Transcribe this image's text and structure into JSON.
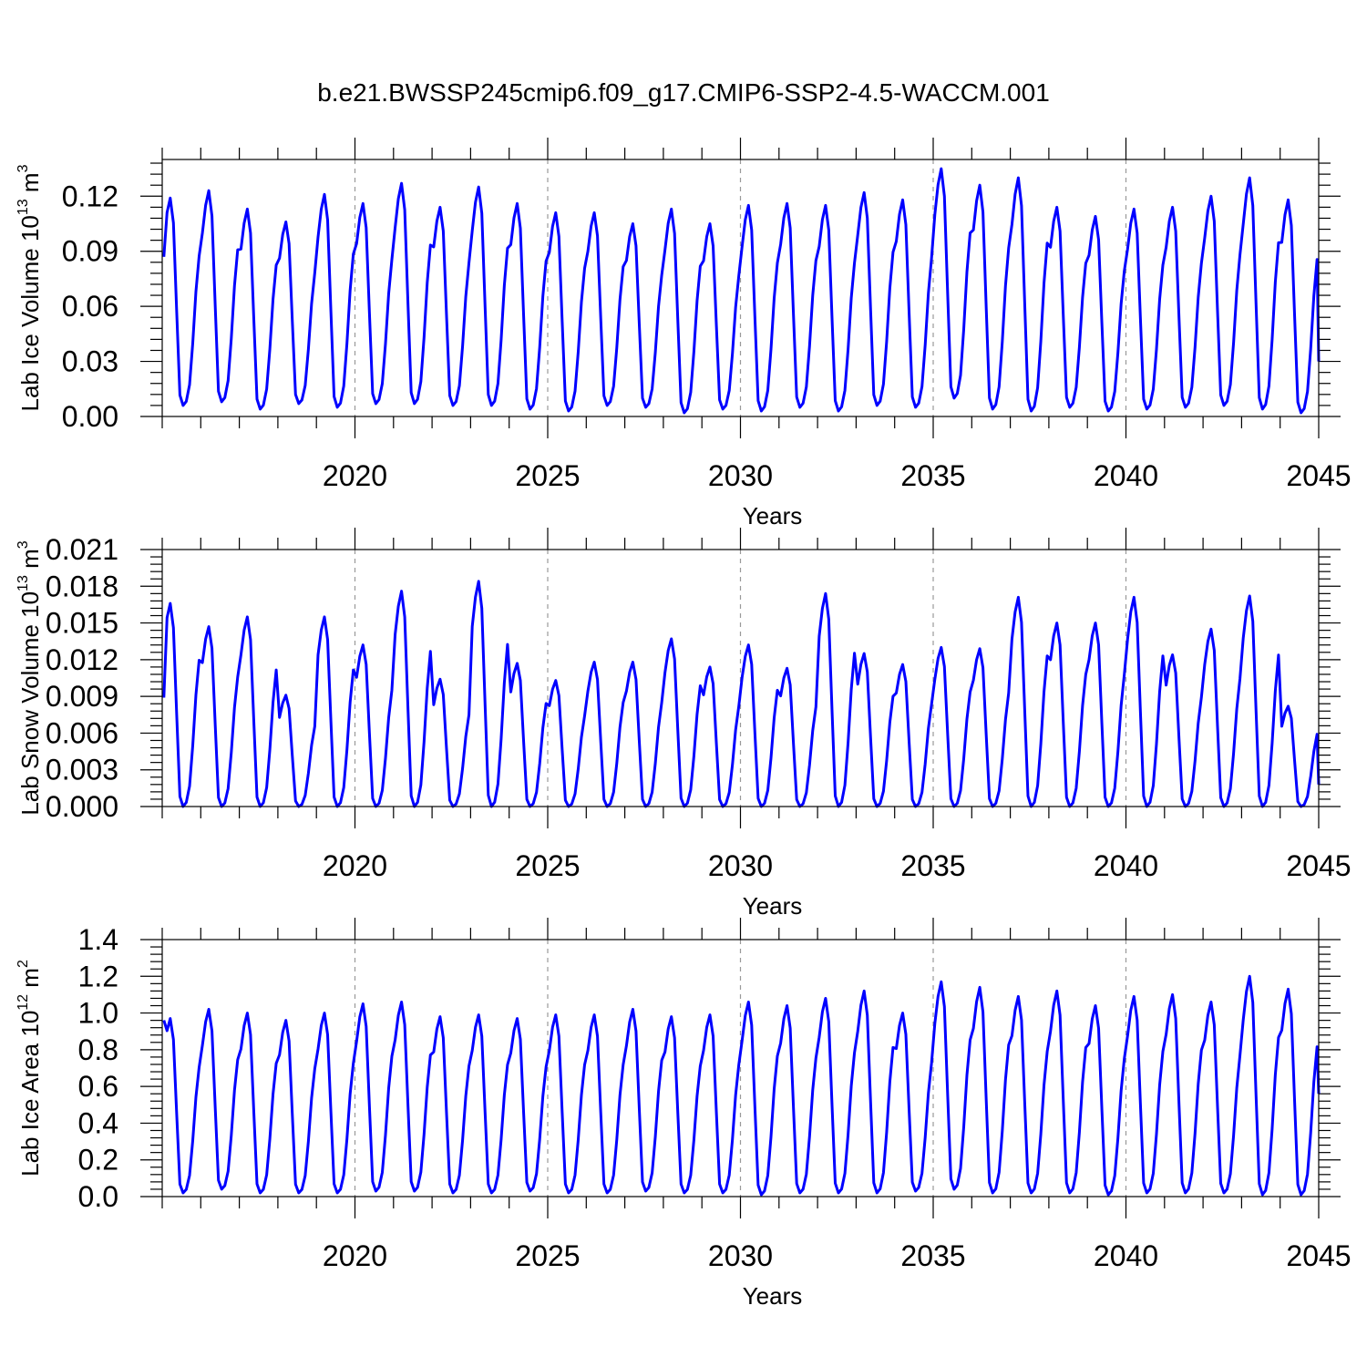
{
  "figure": {
    "title": "b.e21.BWSSP245cmip6.f09_g17.CMIP6-SSP2-4.5-WACCM.001",
    "line_color": "#0000ff"
  },
  "chart_data": [
    {
      "type": "line",
      "ylabel": "Lab Ice Volume 10",
      "ylabel_exp": "13",
      "ylabel_unit": " m",
      "ylabel_unit_exp": "3",
      "xlabel": "Years",
      "xlim": [
        2015,
        2045
      ],
      "ylim": [
        0,
        0.14
      ],
      "yticks": [
        0,
        0.03,
        0.06,
        0.09,
        0.12
      ],
      "ytick_labels": [
        "0.00",
        "0.03",
        "0.06",
        "0.09",
        "0.12"
      ],
      "xticks": [
        2020,
        2025,
        2030,
        2035,
        2040,
        2045
      ],
      "xtick_labels": [
        "2020",
        "2025",
        "2030",
        "2035",
        "2040",
        "2045"
      ],
      "grid_x": [
        2020,
        2025,
        2030,
        2035,
        2040
      ],
      "start": 0.087,
      "end": 0.03,
      "peaks": [
        0.119,
        0.123,
        0.113,
        0.106,
        0.121,
        0.116,
        0.127,
        0.114,
        0.125,
        0.116,
        0.111,
        0.111,
        0.105,
        0.113,
        0.105,
        0.115,
        0.116,
        0.115,
        0.122,
        0.118,
        0.135,
        0.126,
        0.13,
        0.114,
        0.109,
        0.113,
        0.114,
        0.12,
        0.13,
        0.118
      ],
      "troughs": [
        0.006,
        0.008,
        0.004,
        0.007,
        0.005,
        0.007,
        0.007,
        0.006,
        0.006,
        0.004,
        0.003,
        0.006,
        0.005,
        0.002,
        0.004,
        0.003,
        0.005,
        0.003,
        0.006,
        0.005,
        0.01,
        0.004,
        0.003,
        0.005,
        0.003,
        0.004,
        0.005,
        0.006,
        0.004,
        0.002
      ]
    },
    {
      "type": "line",
      "ylabel": "Lab Snow Volume 10",
      "ylabel_exp": "13",
      "ylabel_unit": " m",
      "ylabel_unit_exp": "3",
      "xlabel": "Years",
      "xlim": [
        2015,
        2045
      ],
      "ylim": [
        0,
        0.021
      ],
      "yticks": [
        0,
        0.003,
        0.006,
        0.009,
        0.012,
        0.015,
        0.018,
        0.021
      ],
      "ytick_labels": [
        "0.000",
        "0.003",
        "0.006",
        "0.009",
        "0.012",
        "0.015",
        "0.018",
        "0.021"
      ],
      "xticks": [
        2020,
        2025,
        2030,
        2035,
        2040,
        2045
      ],
      "xtick_labels": [
        "2020",
        "2025",
        "2030",
        "2035",
        "2040",
        "2045"
      ],
      "grid_x": [
        2020,
        2025,
        2030,
        2035,
        2040
      ],
      "start": 0.0089,
      "end": 0.0018,
      "peaks": [
        0.0166,
        0.0147,
        0.0155,
        0.0091,
        0.0155,
        0.0132,
        0.0176,
        0.0104,
        0.0184,
        0.0117,
        0.0103,
        0.0118,
        0.0118,
        0.0137,
        0.0114,
        0.0132,
        0.0113,
        0.0174,
        0.0125,
        0.0116,
        0.013,
        0.0129,
        0.0171,
        0.015,
        0.015,
        0.0171,
        0.0124,
        0.0145,
        0.0172,
        0.0082
      ],
      "troughs": [
        0.0,
        0.0,
        0.0,
        0.0,
        0.0,
        0.0,
        0.0,
        0.0,
        0.0,
        0.0,
        0.0,
        0.0,
        0.0,
        0.0,
        0.0,
        0.0,
        0.0,
        0.0,
        0.0,
        0.0,
        0.0,
        0.0,
        0.0,
        0.0,
        0.0,
        0.0,
        0.0,
        0.0,
        0.0,
        0.0
      ]
    },
    {
      "type": "line",
      "ylabel": "Lab Ice Area 10",
      "ylabel_exp": "12",
      "ylabel_unit": " m",
      "ylabel_unit_exp": "2",
      "xlabel": "Years",
      "xlim": [
        2015,
        2045
      ],
      "ylim": [
        0,
        1.4
      ],
      "yticks": [
        0,
        0.2,
        0.4,
        0.6,
        0.8,
        1.0,
        1.2,
        1.4
      ],
      "ytick_labels": [
        "0.0",
        "0.2",
        "0.4",
        "0.6",
        "0.8",
        "1.0",
        "1.2",
        "1.4"
      ],
      "xticks": [
        2020,
        2025,
        2030,
        2035,
        2040,
        2045
      ],
      "xtick_labels": [
        "2020",
        "2025",
        "2030",
        "2035",
        "2040",
        "2045"
      ],
      "grid_x": [
        2020,
        2025,
        2030,
        2035,
        2040
      ],
      "start": 0.96,
      "end": 0.56,
      "peaks": [
        0.97,
        1.02,
        1.0,
        0.96,
        1.0,
        1.05,
        1.06,
        0.98,
        0.99,
        0.97,
        0.99,
        0.99,
        1.02,
        0.98,
        0.99,
        1.06,
        1.04,
        1.08,
        1.12,
        1.0,
        1.17,
        1.14,
        1.09,
        1.12,
        1.04,
        1.09,
        1.1,
        1.06,
        1.2,
        1.13
      ],
      "troughs": [
        0.02,
        0.04,
        0.02,
        0.02,
        0.02,
        0.03,
        0.03,
        0.02,
        0.02,
        0.03,
        0.02,
        0.02,
        0.03,
        0.02,
        0.02,
        0.01,
        0.02,
        0.02,
        0.02,
        0.03,
        0.04,
        0.02,
        0.02,
        0.02,
        0.01,
        0.02,
        0.02,
        0.02,
        0.01,
        0.01
      ]
    }
  ]
}
